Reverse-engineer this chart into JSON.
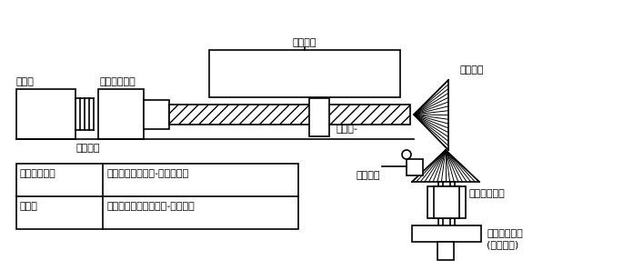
{
  "bg_color": "#ffffff",
  "lc": "#000000",
  "label_motor": "モータ",
  "label_clutch": "クラッチ",
  "label_gearbox": "ギヤボックス",
  "label_table": "テーブル",
  "label_feedscrew": "送りね֊",
  "label_bevelgear": "かさ歯車",
  "label_sensor": "センサー",
  "label_slidingbearing": "すべり軸受け",
  "label_manualhandle_line1": "手動ハンドル",
  "label_manualhandle_line2": "(回転移動)",
  "table_row1_col1": "手動ハンドル",
  "table_row1_col2": "かさ歯車によりね֊軸と一体化",
  "table_row2_col1": "モータ",
  "table_row2_col2": "クラッチにより送りね֊軸と切断",
  "font_size": 8
}
